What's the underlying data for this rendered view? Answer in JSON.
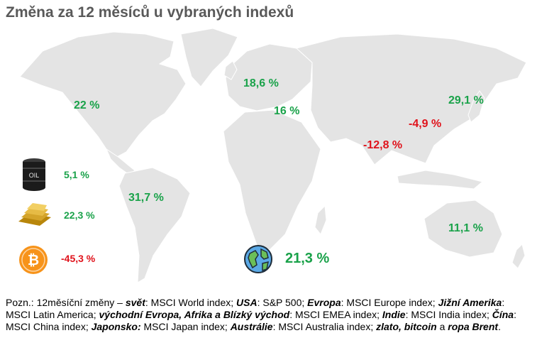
{
  "title": "Změna za 12 měsíců u vybraných indexů",
  "regions": [
    {
      "id": "usa",
      "value": "22 %",
      "sign": "pos"
    },
    {
      "id": "evropa",
      "value": "18,6 %",
      "sign": "pos"
    },
    {
      "id": "emea",
      "value": "16 %",
      "sign": "pos"
    },
    {
      "id": "japonsko",
      "value": "29,1 %",
      "sign": "pos"
    },
    {
      "id": "cina",
      "value": "-4,9 %",
      "sign": "neg"
    },
    {
      "id": "indie",
      "value": "-12,8 %",
      "sign": "neg"
    },
    {
      "id": "latam",
      "value": "31,7 %",
      "sign": "pos"
    },
    {
      "id": "australie",
      "value": "11,1 %",
      "sign": "pos"
    },
    {
      "id": "svet",
      "value": "21,3 %",
      "sign": "pos"
    }
  ],
  "assets": [
    {
      "id": "oil",
      "icon": "oil-barrel-icon",
      "icon_text": "OIL",
      "value": "5,1 %",
      "sign": "pos"
    },
    {
      "id": "gold",
      "icon": "gold-bars-icon",
      "value": "22,3 %",
      "sign": "pos"
    },
    {
      "id": "bitcoin",
      "icon": "bitcoin-icon",
      "icon_text": "₿",
      "value": "-45,3 %",
      "sign": "neg"
    }
  ],
  "world_icon": "globe-icon",
  "colors": {
    "positive": "#1aa24a",
    "negative": "#e0121b",
    "map": "#e4e4e4",
    "title": "#595959"
  },
  "note": {
    "p1": "Pozn.: 12měsíční změny – ",
    "k1": "svět",
    "p2": ": MSCI World index; ",
    "k2": "USA",
    "p3": ": S&P 500; ",
    "k3": "Evropa",
    "p4": ": MSCI Europe index; ",
    "k4": "Jižní Amerika",
    "p5": ": MSCI Latin America; ",
    "k5": "východní Evropa, Afrika a Blízký východ",
    "p6": ": MSCI EMEA index; ",
    "k6": "Indie",
    "p7": ": MSCI India index; ",
    "k7": "Čína",
    "p8": ": MSCI China index; ",
    "k8": "Japonsko:",
    "p9": " MSCI Japan index; ",
    "k9": "Austrálie",
    "p10": ": MSCI Australia index; ",
    "k10": "zlato, bitcoin",
    "p11": " a ",
    "k11": "ropa Brent",
    "p12": "."
  }
}
